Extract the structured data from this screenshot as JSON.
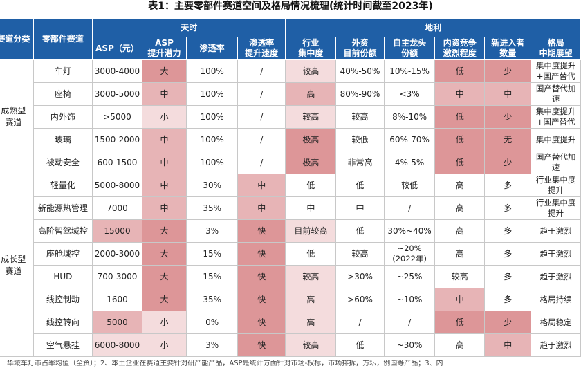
{
  "title": "表1：主要零部件赛道空间及格局情况梳理(统计时间截至2023年)",
  "header": {
    "col_category": "赛道分类",
    "col_part": "零部件赛道",
    "group_tianshi": "天时",
    "group_dili": "地利",
    "cols": [
      "ASP（元）",
      "ASP\n提升潜力",
      "渗透率",
      "渗透率\n提升速度",
      "行业\n集中度",
      "外资\n目前份额",
      "自主龙头\n份额",
      "内资竞争\n激烈程度",
      "新进入者\n数量",
      "格局\n中期展望"
    ]
  },
  "categories": [
    {
      "label": "成熟型\n赛道",
      "rows": [
        {
          "part": "车灯",
          "cells": [
            "3000-4000",
            "大",
            "100%",
            "/",
            "较高",
            "40%-50%",
            "10%-15%",
            "低",
            "少",
            "集中度提升+国产替代"
          ]
        },
        {
          "part": "座椅",
          "cells": [
            "3000-5000",
            "中",
            "100%",
            "/",
            "高",
            "80%-90%",
            "<3%",
            "中",
            "中",
            "国产替代加速"
          ]
        },
        {
          "part": "内外饰",
          "cells": [
            ">5000",
            "小",
            "100%",
            "/",
            "较高",
            "较高",
            "8%-10%",
            "低",
            "少",
            "集中度提升+国产替代"
          ]
        },
        {
          "part": "玻璃",
          "cells": [
            "1500-2000",
            "中",
            "100%",
            "/",
            "极高",
            "较低",
            "60%-70%",
            "低",
            "无",
            "集中度提升"
          ]
        },
        {
          "part": "被动安全",
          "cells": [
            "600-1500",
            "中",
            "100%",
            "/",
            "极高",
            "非常高",
            "4%-5%",
            "低",
            "少",
            "国产替代加速"
          ]
        }
      ]
    },
    {
      "label": "成长型\n赛道",
      "rows": [
        {
          "part": "轻量化",
          "cells": [
            "5000-8000",
            "中",
            "30%",
            "中",
            "低",
            "低",
            "较低",
            "高",
            "多",
            "行业集中度提升"
          ]
        },
        {
          "part": "新能源热管理",
          "cells": [
            "7000",
            "中",
            "35%",
            "中",
            "中",
            "中",
            "/",
            "高",
            "多",
            "行业集中度提升"
          ]
        },
        {
          "part": "高阶智驾域控",
          "cells": [
            "15000",
            "大",
            "3%",
            "快",
            "目前较高",
            "低",
            "30%~40%",
            "高",
            "多",
            "趋于激烈"
          ]
        },
        {
          "part": "座舱域控",
          "cells": [
            "2000-3000",
            "大",
            "15%",
            "快",
            "低",
            "较高",
            "~20%\n(2022年)",
            "高",
            "多",
            "趋于激烈"
          ]
        },
        {
          "part": "HUD",
          "cells": [
            "700-3000",
            "大",
            "15%",
            "快",
            "较高",
            ">30%",
            "~25%",
            "较高",
            "多",
            "趋于激烈"
          ]
        },
        {
          "part": "线控制动",
          "cells": [
            "1600",
            "大",
            "35%",
            "快",
            "高",
            ">60%",
            "~10%",
            "中",
            "多",
            "格局持续"
          ]
        },
        {
          "part": "线控转向",
          "cells": [
            "5000",
            "小",
            "0%",
            "快",
            "高",
            "/",
            "/",
            "低",
            "少",
            "格局稳定"
          ]
        },
        {
          "part": "空气悬挂",
          "cells": [
            "6000-8000",
            "小",
            "3%",
            "快",
            "较高",
            "低",
            "~30%",
            "高",
            "中",
            "趋于激烈"
          ]
        }
      ]
    }
  ],
  "shading": {
    "车灯": [
      0,
      3,
      0,
      0,
      1,
      0,
      0,
      3,
      3,
      0
    ],
    "座椅": [
      0,
      2,
      0,
      0,
      2,
      0,
      0,
      2,
      2,
      0
    ],
    "内外饰": [
      0,
      1,
      0,
      0,
      1,
      0,
      0,
      3,
      3,
      0
    ],
    "玻璃": [
      0,
      2,
      0,
      0,
      3,
      0,
      0,
      3,
      3,
      0
    ],
    "被动安全": [
      0,
      2,
      0,
      0,
      3,
      0,
      0,
      3,
      3,
      0
    ],
    "轻量化": [
      0,
      2,
      0,
      2,
      0,
      0,
      0,
      0,
      0,
      0
    ],
    "新能源热管理": [
      0,
      2,
      0,
      2,
      0,
      0,
      0,
      0,
      0,
      0
    ],
    "高阶智驾域控": [
      2,
      3,
      0,
      3,
      1,
      0,
      0,
      0,
      0,
      0
    ],
    "座舱域控": [
      0,
      3,
      0,
      3,
      0,
      0,
      0,
      0,
      0,
      0
    ],
    "HUD": [
      0,
      3,
      0,
      3,
      1,
      0,
      0,
      0,
      0,
      0
    ],
    "线控制动": [
      0,
      3,
      0,
      3,
      1,
      0,
      0,
      2,
      0,
      0
    ],
    "线控转向": [
      2,
      1,
      0,
      3,
      1,
      0,
      0,
      3,
      3,
      0
    ],
    "空气悬挂": [
      1,
      1,
      0,
      3,
      1,
      0,
      0,
      0,
      2,
      0
    ]
  },
  "footnote": "华域车灯市占率均值（全资）；2、本土企业在赛道主要针对研产能产品，ASP是统计方面针对市场-权标，市场排拆，方坛，例国等产品；3、内"
}
